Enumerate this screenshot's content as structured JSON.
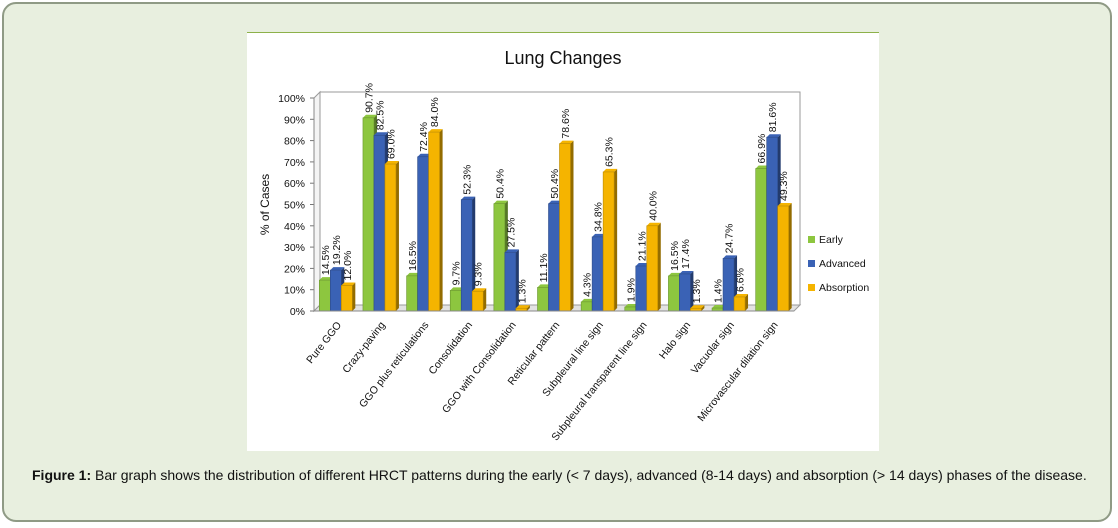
{
  "caption": {
    "label": "Figure 1:",
    "text": "Bar graph shows the distribution of different HRCT patterns during the early (< 7 days), advanced (8-14 days) and absorption (> 14 days) phases of the disease."
  },
  "chart_data": {
    "type": "bar",
    "title": "Lung Changes",
    "xlabel": "",
    "ylabel": "% of Cases",
    "ylim": [
      0,
      100
    ],
    "yticks": [
      "0%",
      "10%",
      "20%",
      "30%",
      "40%",
      "50%",
      "60%",
      "70%",
      "80%",
      "90%",
      "100%"
    ],
    "grid": false,
    "legend_position": "right",
    "categories": [
      "Pure GGO",
      "Crazy-paving",
      "GGO plus reticulations",
      "Consolidation",
      "GGO with Consolidation",
      "Reticular pattern",
      "Subpleural line sign",
      "Subpleural transparent line sign",
      "Halo sign",
      "Vacuolar sign",
      "Microvascular dilation sign"
    ],
    "series": [
      {
        "name": "Early",
        "color": "#8dc63f",
        "values": [
          14.5,
          90.7,
          16.5,
          9.7,
          50.4,
          11.1,
          4.3,
          1.9,
          16.5,
          1.4,
          66.9
        ],
        "labels": [
          "14.5%",
          "90.7%",
          "16.5%",
          "9.7%",
          "50.4%",
          "11.1%",
          "4.3%",
          "1.9%",
          "16.5%",
          "1.4%",
          "66.9%"
        ]
      },
      {
        "name": "Advanced",
        "color": "#3a62b5",
        "values": [
          19.2,
          82.5,
          72.4,
          52.3,
          27.5,
          50.4,
          34.8,
          21.1,
          17.4,
          24.7,
          81.6
        ],
        "labels": [
          "19.2%",
          "82.5%",
          "72.4%",
          "52.3%",
          "27.5%",
          "50.4%",
          "34.8%",
          "21.1%",
          "17.4%",
          "24.7%",
          "81.6%"
        ]
      },
      {
        "name": "Absorption",
        "color": "#f5b400",
        "values": [
          12.0,
          69.0,
          84.0,
          9.3,
          1.3,
          78.6,
          65.3,
          40.0,
          1.3,
          6.6,
          49.3
        ],
        "labels": [
          "12.0%",
          "69.0%",
          "84.0%",
          "9.3%",
          "1.3%",
          "78.6%",
          "65.3%",
          "40.0%",
          "1.3%",
          "6.6%",
          "49.3%"
        ]
      }
    ]
  }
}
